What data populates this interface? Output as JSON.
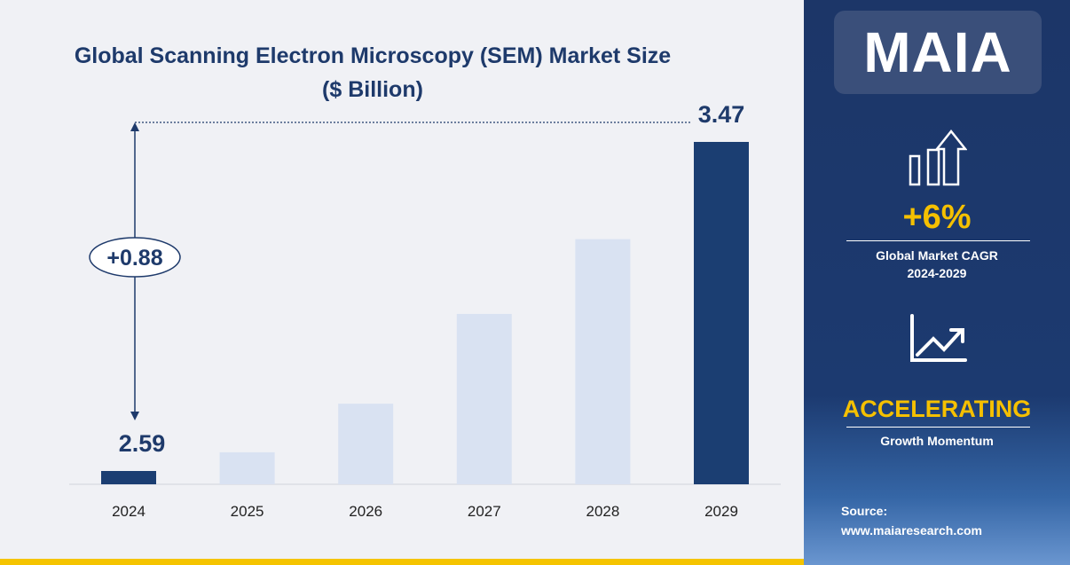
{
  "chart_data": {
    "type": "bar",
    "title": "Global Scanning Electron Microscopy (SEM) Market Size",
    "subtitle": "($ Billion)",
    "categories": [
      "2024",
      "2025",
      "2026",
      "2027",
      "2028",
      "2029"
    ],
    "values": [
      2.59,
      2.64,
      2.77,
      3.01,
      3.21,
      3.47
    ],
    "data_labels": {
      "2024": "2.59",
      "2029": "3.47"
    },
    "highlight_color": "#1b3e72",
    "bar_color": "#d9e2f2",
    "annotation": "+0.88",
    "grid": false
  },
  "sidebar": {
    "logo": "MAIA",
    "cagr_icon": "bar-chart-arrow-up-icon",
    "cagr_value": "+6%",
    "cagr_label": "Global Market CAGR",
    "cagr_period": "2024-2029",
    "trend_icon": "line-chart-trend-up-icon",
    "momentum_value": "ACCELERATING",
    "momentum_label": "Growth Momentum",
    "source_label": "Source:",
    "source_url": "www.maiaresearch.com"
  }
}
